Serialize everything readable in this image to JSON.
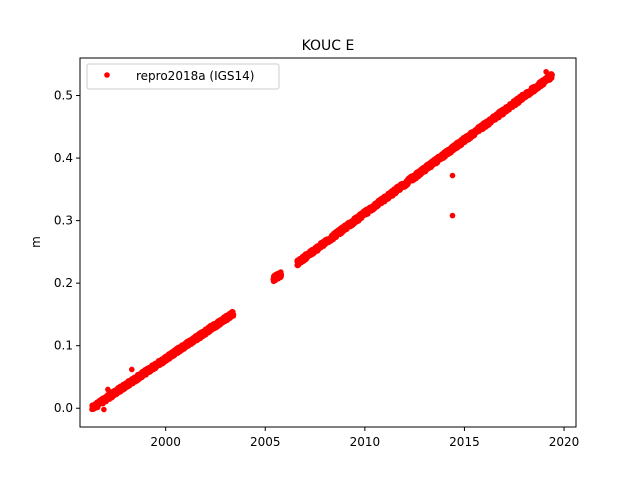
{
  "chart_data": {
    "type": "scatter",
    "title": "KOUC E",
    "xlabel": "",
    "ylabel": "m",
    "xlim": [
      1995.7,
      2020.6
    ],
    "ylim": [
      -0.03,
      0.56
    ],
    "xticks": [
      2000,
      2005,
      2010,
      2015,
      2020
    ],
    "yticks": [
      0.0,
      0.1,
      0.2,
      0.3,
      0.4,
      0.5
    ],
    "grid": false,
    "legend_position": "top-left",
    "series": [
      {
        "name": "repro2018a (IGS14)",
        "color": "#ff0000",
        "marker": "circle",
        "segments": [
          {
            "x_start": 1996.3,
            "x_end": 2003.4,
            "y_start": 0.0,
            "y_end": 0.152
          },
          {
            "x_start": 2005.4,
            "x_end": 2005.8,
            "y_start": 0.207,
            "y_end": 0.214
          },
          {
            "x_start": 2006.6,
            "x_end": 2019.4,
            "y_start": 0.232,
            "y_end": 0.532
          }
        ],
        "outliers": [
          {
            "x": 1998.3,
            "y": 0.062
          },
          {
            "x": 1997.1,
            "y": 0.03
          },
          {
            "x": 1996.9,
            "y": -0.002
          },
          {
            "x": 2014.4,
            "y": 0.372
          },
          {
            "x": 2014.4,
            "y": 0.308
          },
          {
            "x": 2019.1,
            "y": 0.538
          }
        ]
      }
    ]
  }
}
